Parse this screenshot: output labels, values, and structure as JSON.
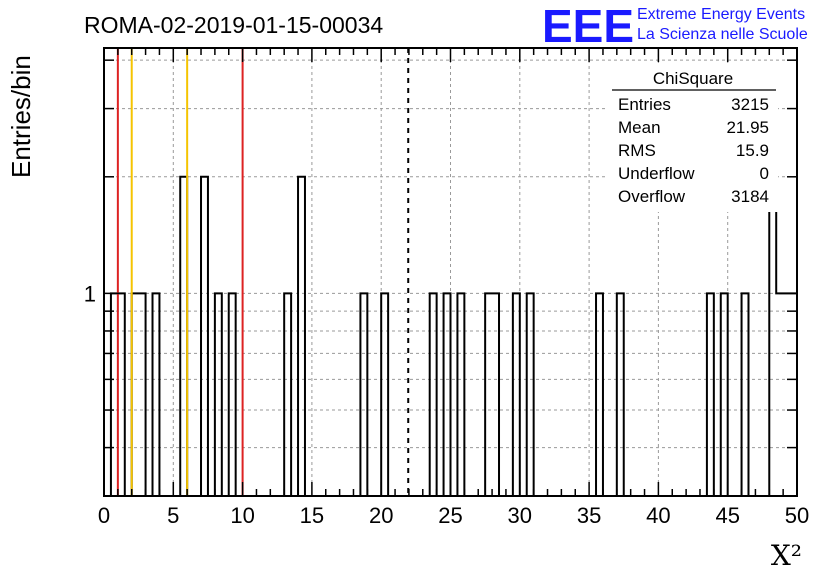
{
  "chart_data": {
    "type": "bar",
    "title": "ROMA-02-2019-01-15-00034",
    "xlabel": "X²",
    "ylabel": "Entries/bin",
    "xlim": [
      0,
      50
    ],
    "ylim": [
      0.3,
      4.3
    ],
    "y_scale": "log",
    "x_ticks": [
      "0",
      "5",
      "10",
      "15",
      "20",
      "25",
      "30",
      "35",
      "40",
      "45",
      "50"
    ],
    "y_ticks": [
      "1"
    ],
    "grid": true,
    "bin_width": 0.5,
    "bins": [
      {
        "x": 0.5,
        "value": 1
      },
      {
        "x": 1.0,
        "value": 1
      },
      {
        "x": 2.0,
        "value": 1
      },
      {
        "x": 2.5,
        "value": 1
      },
      {
        "x": 3.5,
        "value": 1
      },
      {
        "x": 5.5,
        "value": 2
      },
      {
        "x": 7.0,
        "value": 2
      },
      {
        "x": 8.0,
        "value": 1
      },
      {
        "x": 9.0,
        "value": 1
      },
      {
        "x": 13.0,
        "value": 1
      },
      {
        "x": 14.0,
        "value": 2
      },
      {
        "x": 18.5,
        "value": 1
      },
      {
        "x": 20.0,
        "value": 1
      },
      {
        "x": 23.5,
        "value": 1
      },
      {
        "x": 24.5,
        "value": 1
      },
      {
        "x": 25.5,
        "value": 1
      },
      {
        "x": 27.5,
        "value": 1
      },
      {
        "x": 28.0,
        "value": 1
      },
      {
        "x": 29.5,
        "value": 1
      },
      {
        "x": 30.5,
        "value": 1
      },
      {
        "x": 35.5,
        "value": 1
      },
      {
        "x": 37.0,
        "value": 1
      },
      {
        "x": 43.5,
        "value": 1
      },
      {
        "x": 44.5,
        "value": 1
      },
      {
        "x": 46.0,
        "value": 1
      },
      {
        "x": 48.0,
        "value": 2
      },
      {
        "x": 48.5,
        "value": 1
      },
      {
        "x": 49.0,
        "value": 1
      },
      {
        "x": 49.5,
        "value": 1
      }
    ],
    "vertical_lines": [
      {
        "x": 1,
        "color": "#dd2222",
        "style": "solid"
      },
      {
        "x": 2,
        "color": "#f5c400",
        "style": "solid"
      },
      {
        "x": 6,
        "color": "#f5c400",
        "style": "solid"
      },
      {
        "x": 10,
        "color": "#dd2222",
        "style": "solid"
      },
      {
        "x": 21.95,
        "color": "#000000",
        "style": "dashed"
      }
    ],
    "stats_box": {
      "title": "ChiSquare",
      "rows": [
        {
          "label": "Entries",
          "value": "3215"
        },
        {
          "label": "Mean",
          "value": "21.95"
        },
        {
          "label": "RMS",
          "value": "15.9"
        },
        {
          "label": "Underflow",
          "value": "0"
        },
        {
          "label": "Overflow",
          "value": "3184"
        }
      ]
    }
  },
  "logo": {
    "letters": "EEE",
    "line1": "Extreme Energy Events",
    "line2": "La Scienza nelle Scuole"
  }
}
